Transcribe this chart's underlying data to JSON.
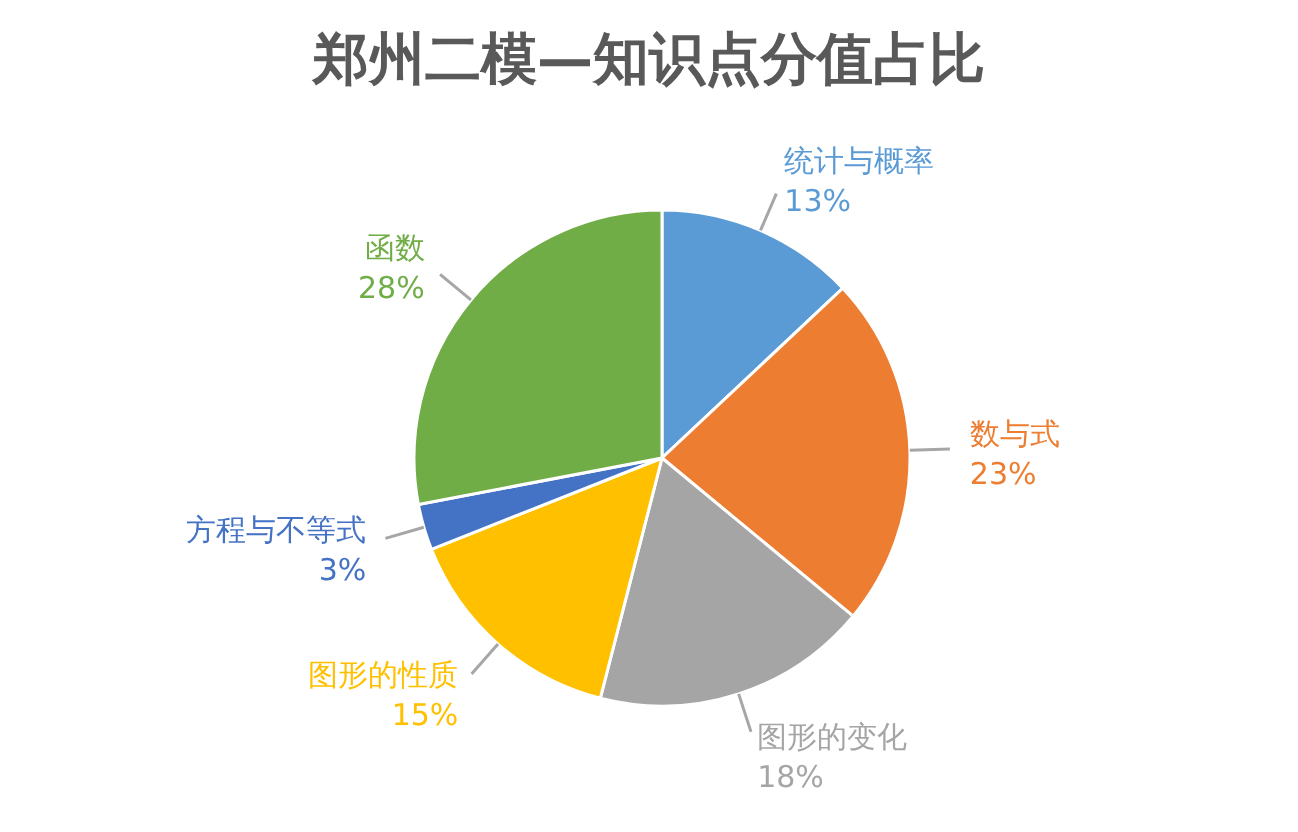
{
  "chart_data": {
    "type": "pie",
    "title": "郑州二模—知识点分值占比",
    "categories": [
      "统计与概率",
      "数与式",
      "图形的变化",
      "图形的性质",
      "方程与不等式",
      "函数"
    ],
    "values": [
      13,
      23,
      18,
      15,
      3,
      28
    ],
    "value_labels": [
      "13%",
      "23%",
      "18%",
      "15%",
      "3%",
      "28%"
    ],
    "colors": [
      "#5b9bd5",
      "#ed7d31",
      "#a5a5a5",
      "#ffc000",
      "#4472c4",
      "#70ad47"
    ],
    "legend": false
  }
}
